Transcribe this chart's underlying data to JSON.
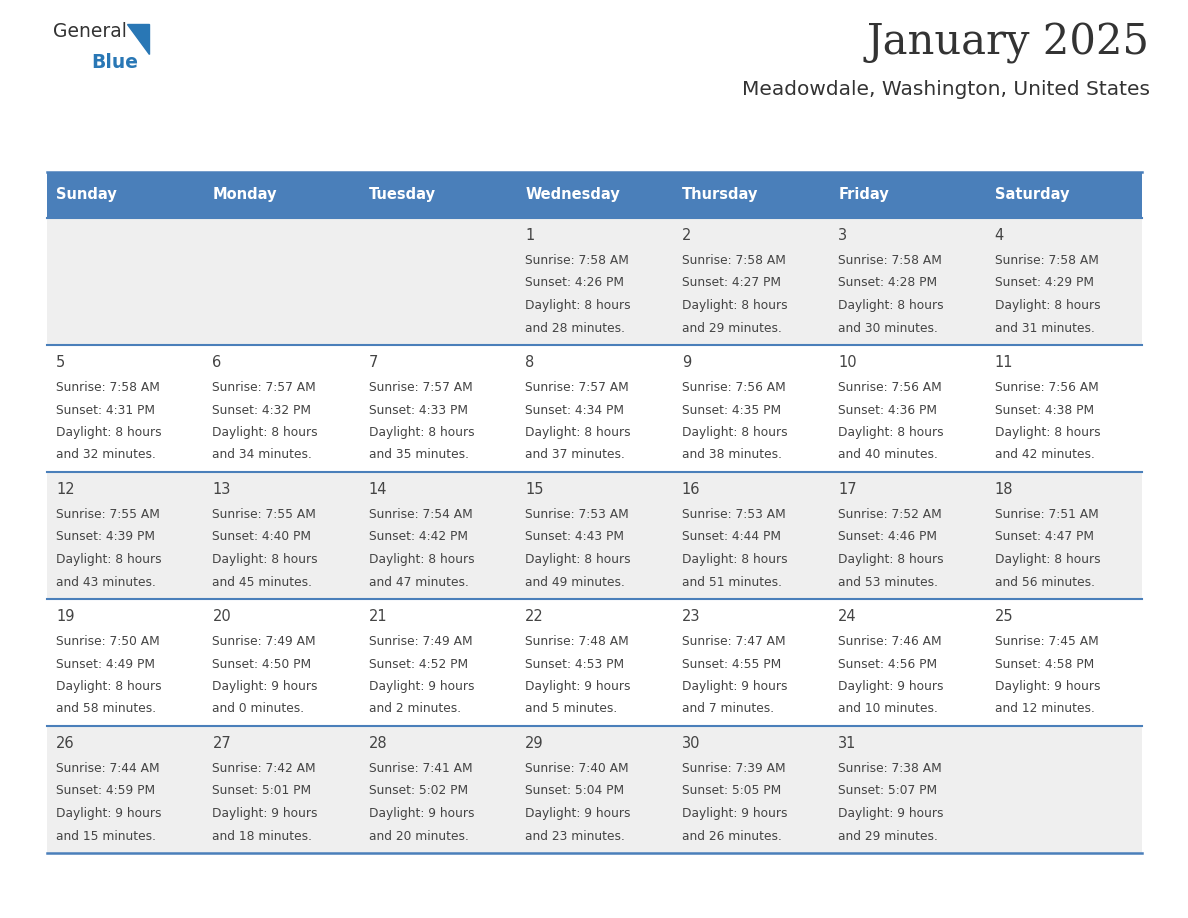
{
  "title": "January 2025",
  "subtitle": "Meadowdale, Washington, United States",
  "header_color": "#4a7fba",
  "header_text_color": "#ffffff",
  "days_of_week": [
    "Sunday",
    "Monday",
    "Tuesday",
    "Wednesday",
    "Thursday",
    "Friday",
    "Saturday"
  ],
  "row_bg_even": "#efefef",
  "row_bg_odd": "#ffffff",
  "divider_color": "#4a7fba",
  "text_color": "#444444",
  "title_color": "#333333",
  "logo_general_color": "#333333",
  "logo_blue_color": "#2e7bbf",
  "calendar_data": [
    [
      {
        "day": "",
        "sunrise": "",
        "sunset": "",
        "daylight_h": "",
        "daylight_m": ""
      },
      {
        "day": "",
        "sunrise": "",
        "sunset": "",
        "daylight_h": "",
        "daylight_m": ""
      },
      {
        "day": "",
        "sunrise": "",
        "sunset": "",
        "daylight_h": "",
        "daylight_m": ""
      },
      {
        "day": "1",
        "sunrise": "7:58 AM",
        "sunset": "4:26 PM",
        "daylight_h": "8 hours",
        "daylight_m": "and 28 minutes."
      },
      {
        "day": "2",
        "sunrise": "7:58 AM",
        "sunset": "4:27 PM",
        "daylight_h": "8 hours",
        "daylight_m": "and 29 minutes."
      },
      {
        "day": "3",
        "sunrise": "7:58 AM",
        "sunset": "4:28 PM",
        "daylight_h": "8 hours",
        "daylight_m": "and 30 minutes."
      },
      {
        "day": "4",
        "sunrise": "7:58 AM",
        "sunset": "4:29 PM",
        "daylight_h": "8 hours",
        "daylight_m": "and 31 minutes."
      }
    ],
    [
      {
        "day": "5",
        "sunrise": "7:58 AM",
        "sunset": "4:31 PM",
        "daylight_h": "8 hours",
        "daylight_m": "and 32 minutes."
      },
      {
        "day": "6",
        "sunrise": "7:57 AM",
        "sunset": "4:32 PM",
        "daylight_h": "8 hours",
        "daylight_m": "and 34 minutes."
      },
      {
        "day": "7",
        "sunrise": "7:57 AM",
        "sunset": "4:33 PM",
        "daylight_h": "8 hours",
        "daylight_m": "and 35 minutes."
      },
      {
        "day": "8",
        "sunrise": "7:57 AM",
        "sunset": "4:34 PM",
        "daylight_h": "8 hours",
        "daylight_m": "and 37 minutes."
      },
      {
        "day": "9",
        "sunrise": "7:56 AM",
        "sunset": "4:35 PM",
        "daylight_h": "8 hours",
        "daylight_m": "and 38 minutes."
      },
      {
        "day": "10",
        "sunrise": "7:56 AM",
        "sunset": "4:36 PM",
        "daylight_h": "8 hours",
        "daylight_m": "and 40 minutes."
      },
      {
        "day": "11",
        "sunrise": "7:56 AM",
        "sunset": "4:38 PM",
        "daylight_h": "8 hours",
        "daylight_m": "and 42 minutes."
      }
    ],
    [
      {
        "day": "12",
        "sunrise": "7:55 AM",
        "sunset": "4:39 PM",
        "daylight_h": "8 hours",
        "daylight_m": "and 43 minutes."
      },
      {
        "day": "13",
        "sunrise": "7:55 AM",
        "sunset": "4:40 PM",
        "daylight_h": "8 hours",
        "daylight_m": "and 45 minutes."
      },
      {
        "day": "14",
        "sunrise": "7:54 AM",
        "sunset": "4:42 PM",
        "daylight_h": "8 hours",
        "daylight_m": "and 47 minutes."
      },
      {
        "day": "15",
        "sunrise": "7:53 AM",
        "sunset": "4:43 PM",
        "daylight_h": "8 hours",
        "daylight_m": "and 49 minutes."
      },
      {
        "day": "16",
        "sunrise": "7:53 AM",
        "sunset": "4:44 PM",
        "daylight_h": "8 hours",
        "daylight_m": "and 51 minutes."
      },
      {
        "day": "17",
        "sunrise": "7:52 AM",
        "sunset": "4:46 PM",
        "daylight_h": "8 hours",
        "daylight_m": "and 53 minutes."
      },
      {
        "day": "18",
        "sunrise": "7:51 AM",
        "sunset": "4:47 PM",
        "daylight_h": "8 hours",
        "daylight_m": "and 56 minutes."
      }
    ],
    [
      {
        "day": "19",
        "sunrise": "7:50 AM",
        "sunset": "4:49 PM",
        "daylight_h": "8 hours",
        "daylight_m": "and 58 minutes."
      },
      {
        "day": "20",
        "sunrise": "7:49 AM",
        "sunset": "4:50 PM",
        "daylight_h": "9 hours",
        "daylight_m": "and 0 minutes."
      },
      {
        "day": "21",
        "sunrise": "7:49 AM",
        "sunset": "4:52 PM",
        "daylight_h": "9 hours",
        "daylight_m": "and 2 minutes."
      },
      {
        "day": "22",
        "sunrise": "7:48 AM",
        "sunset": "4:53 PM",
        "daylight_h": "9 hours",
        "daylight_m": "and 5 minutes."
      },
      {
        "day": "23",
        "sunrise": "7:47 AM",
        "sunset": "4:55 PM",
        "daylight_h": "9 hours",
        "daylight_m": "and 7 minutes."
      },
      {
        "day": "24",
        "sunrise": "7:46 AM",
        "sunset": "4:56 PM",
        "daylight_h": "9 hours",
        "daylight_m": "and 10 minutes."
      },
      {
        "day": "25",
        "sunrise": "7:45 AM",
        "sunset": "4:58 PM",
        "daylight_h": "9 hours",
        "daylight_m": "and 12 minutes."
      }
    ],
    [
      {
        "day": "26",
        "sunrise": "7:44 AM",
        "sunset": "4:59 PM",
        "daylight_h": "9 hours",
        "daylight_m": "and 15 minutes."
      },
      {
        "day": "27",
        "sunrise": "7:42 AM",
        "sunset": "5:01 PM",
        "daylight_h": "9 hours",
        "daylight_m": "and 18 minutes."
      },
      {
        "day": "28",
        "sunrise": "7:41 AM",
        "sunset": "5:02 PM",
        "daylight_h": "9 hours",
        "daylight_m": "and 20 minutes."
      },
      {
        "day": "29",
        "sunrise": "7:40 AM",
        "sunset": "5:04 PM",
        "daylight_h": "9 hours",
        "daylight_m": "and 23 minutes."
      },
      {
        "day": "30",
        "sunrise": "7:39 AM",
        "sunset": "5:05 PM",
        "daylight_h": "9 hours",
        "daylight_m": "and 26 minutes."
      },
      {
        "day": "31",
        "sunrise": "7:38 AM",
        "sunset": "5:07 PM",
        "daylight_h": "9 hours",
        "daylight_m": "and 29 minutes."
      },
      {
        "day": "",
        "sunrise": "",
        "sunset": "",
        "daylight_h": "",
        "daylight_m": ""
      }
    ]
  ]
}
